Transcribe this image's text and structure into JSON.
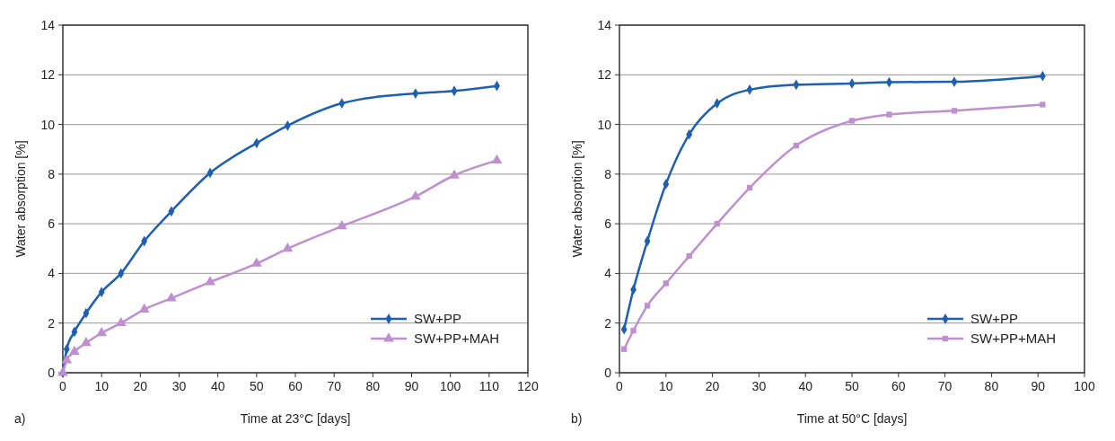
{
  "chart_data": [
    {
      "type": "line",
      "xlabel": "Time at 23°C [days]",
      "ylabel": "Water absorption [%]",
      "annotations": [
        "a)"
      ],
      "xlim": [
        0,
        120
      ],
      "xticks": [
        0,
        10,
        20,
        30,
        40,
        50,
        60,
        70,
        80,
        90,
        100,
        110,
        120
      ],
      "ylim": [
        0,
        14
      ],
      "yticks": [
        0,
        2,
        4,
        6,
        8,
        10,
        12,
        14
      ],
      "grid": "y",
      "legend": "bottom right",
      "line_style": "solid",
      "x": [
        0,
        1,
        3,
        6,
        10,
        15,
        21,
        28,
        38,
        50,
        58,
        72,
        91,
        101,
        112
      ],
      "series": [
        {
          "name": "SW+PP",
          "color": "#1f5fb0",
          "marker": "diamond",
          "values": [
            0,
            0.95,
            1.65,
            2.4,
            3.25,
            4.0,
            5.3,
            6.5,
            8.05,
            9.25,
            9.95,
            10.85,
            11.25,
            11.35,
            11.55
          ]
        },
        {
          "name": "SW+PP+MAH",
          "color": "#c08fd0",
          "marker": "triangle",
          "values": [
            0,
            0.5,
            0.85,
            1.2,
            1.6,
            2.0,
            2.55,
            3.0,
            3.65,
            4.4,
            5.0,
            5.9,
            7.1,
            7.95,
            8.55
          ]
        }
      ]
    },
    {
      "type": "line",
      "xlabel": "Time at 50°C [days]",
      "ylabel": "Water absorption [%]",
      "annotations": [
        "b)"
      ],
      "xlim": [
        0,
        100
      ],
      "xticks": [
        0,
        10,
        20,
        30,
        40,
        50,
        60,
        70,
        80,
        90,
        100
      ],
      "ylim": [
        0,
        14
      ],
      "yticks": [
        0,
        2,
        4,
        6,
        8,
        10,
        12,
        14
      ],
      "grid": "y",
      "legend": "bottom right",
      "line_style": "solid",
      "x": [
        1,
        3,
        6,
        10,
        15,
        21,
        28,
        38,
        50,
        58,
        72,
        91
      ],
      "series": [
        {
          "name": "SW+PP",
          "color": "#1f5fb0",
          "marker": "diamond",
          "values": [
            1.75,
            3.35,
            5.3,
            7.6,
            9.6,
            10.85,
            11.4,
            11.6,
            11.65,
            11.7,
            11.72,
            11.95
          ]
        },
        {
          "name": "SW+PP+MAH",
          "color": "#c08fd0",
          "marker": "square",
          "values": [
            0.95,
            1.7,
            2.7,
            3.6,
            4.7,
            6.0,
            7.45,
            9.15,
            10.15,
            10.4,
            10.55,
            10.8
          ]
        }
      ]
    }
  ]
}
